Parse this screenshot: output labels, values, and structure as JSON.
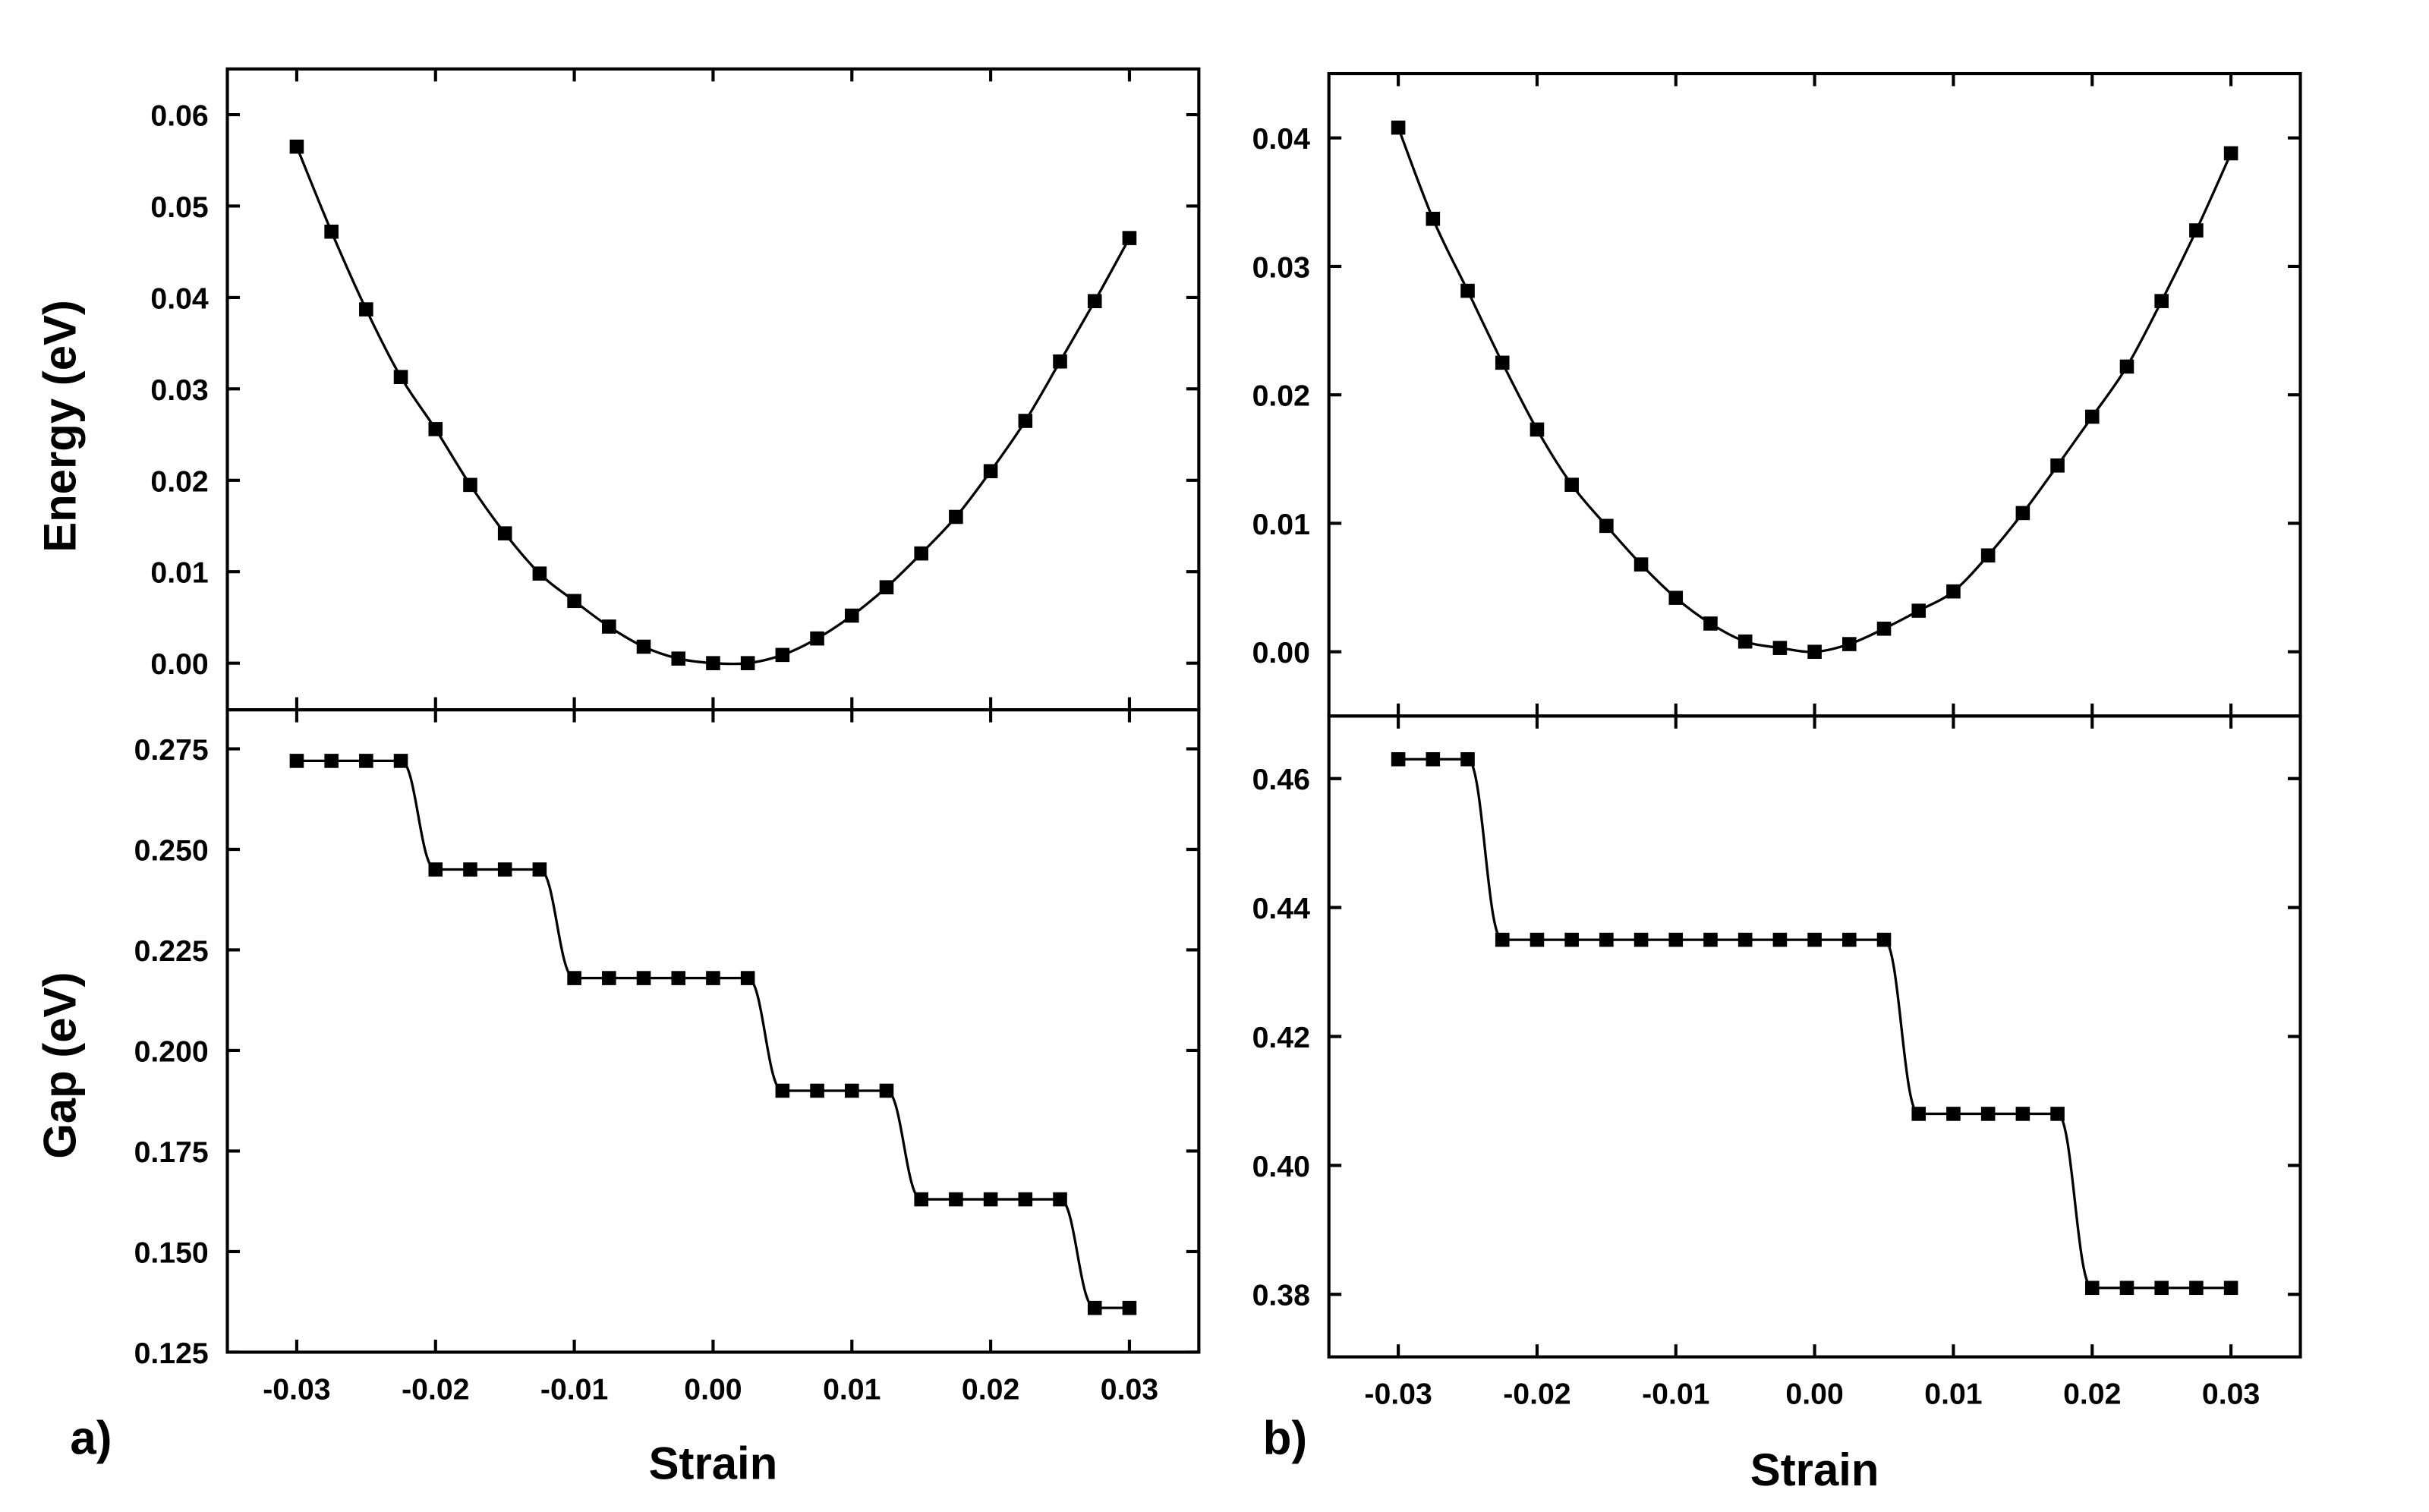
{
  "chart_data": [
    {
      "id": "a-energy",
      "type": "line",
      "panel": "a",
      "ylabel": "Energy (eV)",
      "xlabel": "",
      "xlim": [
        -0.035,
        0.035
      ],
      "ylim": [
        -0.0051,
        0.065
      ],
      "xticks": [
        -0.03,
        -0.02,
        -0.01,
        0.0,
        0.01,
        0.02,
        0.03
      ],
      "yticks": [
        0.0,
        0.01,
        0.02,
        0.03,
        0.04,
        0.05,
        0.06
      ],
      "ydecimals": 2,
      "show_xticklabels": false,
      "curve": "smooth",
      "x": [
        -0.03,
        -0.0275,
        -0.025,
        -0.0225,
        -0.02,
        -0.0175,
        -0.015,
        -0.0125,
        -0.01,
        -0.0075,
        -0.005,
        -0.0025,
        0,
        0.0025,
        0.005,
        0.0075,
        0.01,
        0.0125,
        0.015,
        0.0175,
        0.02,
        0.0225,
        0.025,
        0.0275,
        0.03
      ],
      "y": [
        0.0565,
        0.0472,
        0.0387,
        0.0313,
        0.0256,
        0.0195,
        0.0142,
        0.0098,
        0.0068,
        0.004,
        0.0018,
        0.0005,
        0.0,
        0.0,
        0.0009,
        0.0027,
        0.0052,
        0.0083,
        0.012,
        0.016,
        0.021,
        0.0265,
        0.033,
        0.0396,
        0.0465
      ]
    },
    {
      "id": "a-gap",
      "type": "line",
      "panel": "a",
      "ylabel": "Gap (eV)",
      "xlabel": "Strain",
      "xlim": [
        -0.035,
        0.035
      ],
      "ylim": [
        0.125,
        0.2847
      ],
      "xticks": [
        -0.03,
        -0.02,
        -0.01,
        0.0,
        0.01,
        0.02,
        0.03
      ],
      "yticks": [
        0.125,
        0.15,
        0.175,
        0.2,
        0.225,
        0.25,
        0.275
      ],
      "ydecimals": 3,
      "show_xticklabels": true,
      "curve": "step-smooth",
      "x": [
        -0.03,
        -0.0275,
        -0.025,
        -0.0225,
        -0.02,
        -0.0175,
        -0.015,
        -0.0125,
        -0.01,
        -0.0075,
        -0.005,
        -0.0025,
        0,
        0.0025,
        0.005,
        0.0075,
        0.01,
        0.0125,
        0.015,
        0.0175,
        0.02,
        0.0225,
        0.025,
        0.0275,
        0.03
      ],
      "y": [
        0.272,
        0.272,
        0.272,
        0.272,
        0.245,
        0.245,
        0.245,
        0.245,
        0.218,
        0.218,
        0.218,
        0.218,
        0.218,
        0.218,
        0.19,
        0.19,
        0.19,
        0.19,
        0.163,
        0.163,
        0.163,
        0.163,
        0.163,
        0.136,
        0.136
      ]
    },
    {
      "id": "b-energy",
      "type": "line",
      "panel": "b",
      "ylabel": "",
      "xlabel": "",
      "xlim": [
        -0.035,
        0.035
      ],
      "ylim": [
        -0.005,
        0.045
      ],
      "xticks": [
        -0.03,
        -0.02,
        -0.01,
        0.0,
        0.01,
        0.02,
        0.03
      ],
      "yticks": [
        0.0,
        0.01,
        0.02,
        0.03,
        0.04
      ],
      "ydecimals": 2,
      "show_xticklabels": false,
      "curve": "smooth",
      "x": [
        -0.03,
        -0.0275,
        -0.025,
        -0.0225,
        -0.02,
        -0.0175,
        -0.015,
        -0.0125,
        -0.01,
        -0.0075,
        -0.005,
        -0.0025,
        0,
        0.0025,
        0.005,
        0.0075,
        0.01,
        0.0125,
        0.015,
        0.0175,
        0.02,
        0.0225,
        0.025,
        0.0275,
        0.03
      ],
      "y": [
        0.0408,
        0.0337,
        0.0281,
        0.0225,
        0.0173,
        0.013,
        0.0098,
        0.0068,
        0.0042,
        0.0022,
        0.0008,
        0.0003,
        0.0,
        0.0006,
        0.0018,
        0.0032,
        0.0047,
        0.0075,
        0.0108,
        0.0145,
        0.0183,
        0.0222,
        0.0273,
        0.0328,
        0.0388
      ]
    },
    {
      "id": "b-gap",
      "type": "line",
      "panel": "b",
      "ylabel": "",
      "xlabel": "Strain",
      "xlim": [
        -0.035,
        0.035
      ],
      "ylim": [
        0.3703,
        0.4697
      ],
      "xticks": [
        -0.03,
        -0.02,
        -0.01,
        0.0,
        0.01,
        0.02,
        0.03
      ],
      "yticks": [
        0.38,
        0.4,
        0.42,
        0.44,
        0.46
      ],
      "ydecimals": 2,
      "show_xticklabels": true,
      "curve": "step-smooth",
      "x": [
        -0.03,
        -0.0275,
        -0.025,
        -0.0225,
        -0.02,
        -0.0175,
        -0.015,
        -0.0125,
        -0.01,
        -0.0075,
        -0.005,
        -0.0025,
        0,
        0.0025,
        0.005,
        0.0075,
        0.01,
        0.0125,
        0.015,
        0.0175,
        0.02,
        0.0225,
        0.025,
        0.0275,
        0.03
      ],
      "y": [
        0.463,
        0.463,
        0.463,
        0.435,
        0.435,
        0.435,
        0.435,
        0.435,
        0.435,
        0.435,
        0.435,
        0.435,
        0.435,
        0.435,
        0.435,
        0.408,
        0.408,
        0.408,
        0.408,
        0.408,
        0.381,
        0.381,
        0.381,
        0.381,
        0.381
      ]
    }
  ],
  "labels": {
    "panel_a": "a)",
    "panel_b": "b)",
    "a_xlabel": "Strain",
    "b_xlabel": "Strain",
    "a_energy_ylabel": "Energy (eV)",
    "a_gap_ylabel": "Gap (eV)"
  }
}
